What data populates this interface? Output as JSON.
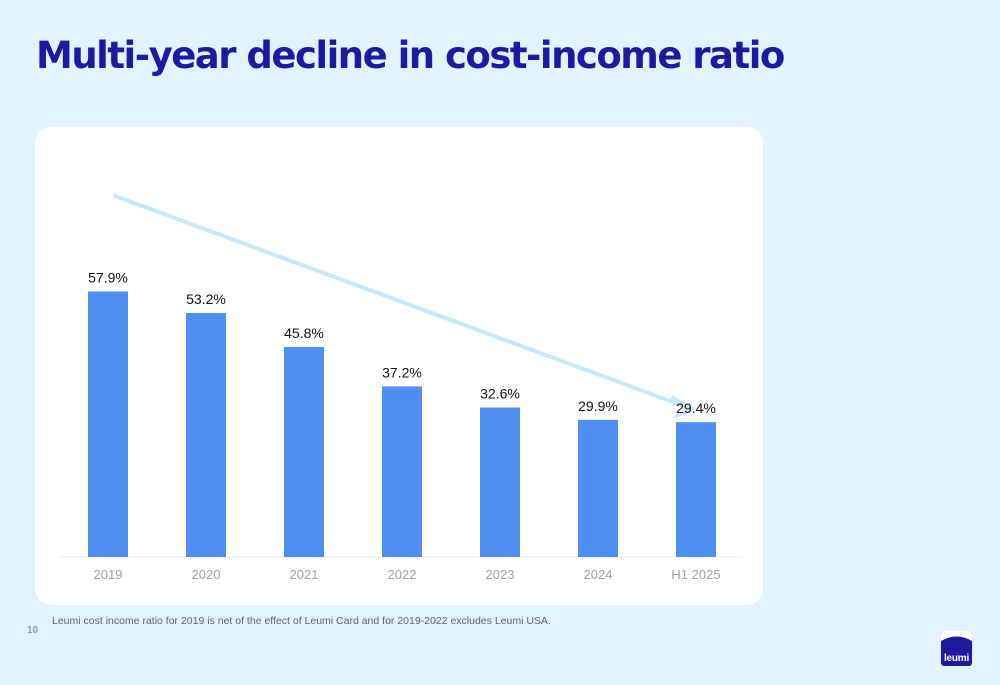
{
  "page": {
    "title": "Multi-year decline in cost-income ratio",
    "footnote": "Leumi cost income ratio for 2019 is net of the effect of Leumi Card and for 2019-2022 excludes Leumi USA.",
    "page_number": "10"
  },
  "logo": {
    "text": "leumi",
    "icon": "leumi-wave-logo-icon",
    "color": "#1e1aa0"
  },
  "colors": {
    "title": "#1e1aa0",
    "bar": "#4f8ff2",
    "trend_arrow": "#c9e8fa",
    "background": "#e3f3fd",
    "panel": "#ffffff"
  },
  "chart_data": {
    "type": "bar",
    "categories": [
      "2019",
      "2020",
      "2021",
      "2022",
      "2023",
      "2024",
      "H1 2025"
    ],
    "values": [
      57.9,
      53.2,
      45.8,
      37.2,
      32.6,
      29.9,
      29.4
    ],
    "data_labels": [
      "57.9%",
      "53.2%",
      "45.8%",
      "37.2%",
      "32.6%",
      "29.9%",
      "29.4%"
    ],
    "unit": "%",
    "ylim": [
      0,
      58
    ],
    "grid": false,
    "legend": "none",
    "annotations": [
      {
        "type": "trend-arrow",
        "direction": "down-right",
        "color": "#c9e8fa"
      }
    ]
  }
}
